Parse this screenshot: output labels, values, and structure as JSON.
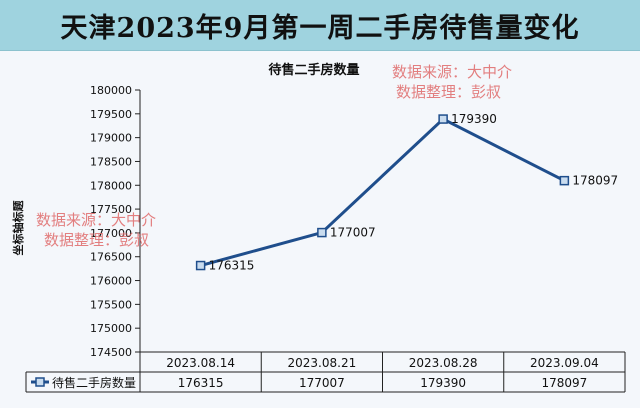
{
  "page": {
    "title": "天津2023年9月第一周二手房待售量变化"
  },
  "watermark": {
    "line1": "数据来源：大中介",
    "line2": "数据整理：彭叔",
    "color": "#e06a6a"
  },
  "chart_data": {
    "type": "line",
    "title": "待售二手房数量",
    "ylabel": "坐标轴标题",
    "xlabel": "",
    "categories": [
      "2023.08.14",
      "2023.08.21",
      "2023.08.28",
      "2023.09.04"
    ],
    "series": [
      {
        "name": "待售二手房数量",
        "values": [
          176315,
          177007,
          179390,
          178097
        ],
        "color": "#1f4e8c"
      }
    ],
    "ylim": [
      174500,
      180000
    ],
    "yticks": [
      174500,
      175000,
      175500,
      176000,
      176500,
      177000,
      177500,
      178000,
      178500,
      179000,
      179500,
      180000
    ],
    "data_labels": true,
    "data_table": true,
    "grid": false
  }
}
